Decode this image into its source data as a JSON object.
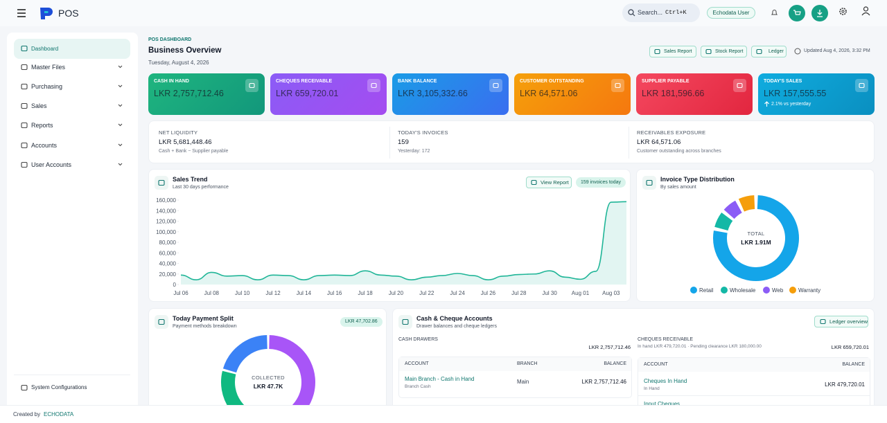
{
  "topbar": {
    "app_name": "POS",
    "search_placeholder": "Search...",
    "search_shortcut": "Ctrl+K",
    "user": "Echodata User"
  },
  "sidebar": {
    "items": [
      "Dashboard",
      "Master Files",
      "Purchasing",
      "Sales",
      "Reports",
      "Accounts",
      "User Accounts"
    ],
    "footer_item": "System Configurations"
  },
  "header": {
    "eyebrow": "POS DASHBOARD",
    "title": "Business Overview",
    "date": "Tuesday, August 4, 2026",
    "buttons": [
      "Sales Report",
      "Stock Report",
      "Ledger"
    ],
    "updated": "Updated Aug 4, 2026, 3:32 PM"
  },
  "kpis": [
    {
      "label": "CASH IN HAND",
      "value": "LKR 2,757,712.46",
      "color": [
        "#1fb57f",
        "#12977b"
      ]
    },
    {
      "label": "CHEQUES RECEIVABLE",
      "value": "LKR 659,720.01",
      "color": [
        "#8b5cf6",
        "#a44cf0"
      ]
    },
    {
      "label": "BANK BALANCE",
      "value": "LKR 3,105,332.66",
      "color": [
        "#1a9be6",
        "#3a6ef0"
      ]
    },
    {
      "label": "CUSTOMER OUTSTANDING",
      "value": "LKR 64,571.06",
      "color": [
        "#f5a00b",
        "#f5780f"
      ]
    },
    {
      "label": "SUPPLIER PAYABLE",
      "value": "LKR 181,596.66",
      "color": [
        "#f4485f",
        "#e2263f"
      ]
    },
    {
      "label": "TODAY'S SALES",
      "value": "LKR 157,555.55",
      "note": "2.1% vs yesterday",
      "color": [
        "#10acdf",
        "#0a8fc0"
      ]
    }
  ],
  "summary": [
    {
      "label": "NET LIQUIDITY",
      "value": "LKR 5,681,448.46",
      "note": "Cash + Bank − Supplier payable"
    },
    {
      "label": "TODAY'S INVOICES",
      "value": "159",
      "note": "Yesterday: 172"
    },
    {
      "label": "RECEIVABLES EXPOSURE",
      "value": "LKR 64,571.06",
      "note": "Customer outstanding across branches"
    }
  ],
  "sales_trend": {
    "title": "Sales Trend",
    "subtitle": "Last 30 days performance",
    "button": "View Report",
    "badge": "159 invoices today",
    "chart_data": {
      "type": "line",
      "color": "#1fb597",
      "categories": [
        "Jul 06",
        null,
        "Jul 08",
        null,
        "Jul 10",
        null,
        "Jul 12",
        null,
        "Jul 14",
        null,
        "Jul 16",
        null,
        "Jul 18",
        null,
        "Jul 20",
        null,
        "Jul 22",
        null,
        "Jul 24",
        null,
        "Jul 26",
        null,
        "Jul 28",
        null,
        "Jul 30",
        null,
        "Aug 01",
        null,
        "Aug 03",
        null
      ],
      "values": [
        18000,
        9000,
        23000,
        16000,
        17000,
        9000,
        18000,
        17000,
        9000,
        17000,
        18000,
        17000,
        26000,
        18000,
        16000,
        9000,
        14000,
        17000,
        21000,
        17000,
        9000,
        16000,
        19000,
        20000,
        26000,
        14000,
        10000,
        25000,
        156000,
        157000
      ],
      "ylim": [
        0,
        160000
      ],
      "yticks": [
        0,
        {
          "value": 20000,
          "label": "20,000"
        },
        {
          "value": 40000,
          "label": "40,000"
        },
        {
          "value": 60000,
          "label": "60,000"
        },
        {
          "value": 80000,
          "label": "80,000"
        },
        {
          "value": 100000,
          "label": "100,000"
        },
        {
          "value": 120000,
          "label": "120,000"
        },
        {
          "value": 140000,
          "label": "140,000"
        },
        {
          "value": 160000,
          "label": "160,000"
        }
      ],
      "grid": false
    }
  },
  "invoice_distribution": {
    "title": "Invoice Type Distribution",
    "subtitle": "By sales amount",
    "chart_data": {
      "type": "donut",
      "center_label": "TOTAL",
      "center_value": "LKR 1.91M",
      "categories": [
        "Retail",
        "Wholesale",
        "Web",
        "Warranty"
      ],
      "values": [
        1500000,
        140000,
        130000,
        140000
      ],
      "colors": [
        "#14a5e9",
        "#14b8a6",
        "#8b5cf6",
        "#f59e0b"
      ]
    }
  },
  "payment_split": {
    "title": "Today Payment Split",
    "subtitle": "Payment methods breakdown",
    "badge": "LKR 47,702.86",
    "chart_data": {
      "type": "donut",
      "center_label": "COLLECTED",
      "center_value": "LKR 47.7K",
      "values": [
        22400,
        2000,
        13400,
        9900
      ],
      "colors": [
        "#a855f7",
        "#3b82f6",
        "#10b981",
        "#3b82f6"
      ]
    }
  },
  "accounts": {
    "title": "Cash & Cheque Accounts",
    "subtitle": "Drawer balances and cheque ledgers",
    "button": "Ledger overview",
    "cash": {
      "label": "CASH DRAWERS",
      "total": "LKR 2,757,712.46",
      "columns": [
        "ACCOUNT",
        "BRANCH",
        "BALANCE"
      ],
      "rows": [
        {
          "account": "Main Branch - Cash in Hand",
          "sub": "Branch Cash",
          "branch": "Main",
          "balance": "LKR 2,757,712.46"
        }
      ]
    },
    "cheques": {
      "label": "CHEQUES RECEIVABLE",
      "note": "In hand LKR 479,720.01 · Pending clearance LKR 180,000.00",
      "total": "LKR 659,720.01",
      "columns": [
        "ACCOUNT",
        "BALANCE"
      ],
      "rows": [
        {
          "account": "Cheques In Hand",
          "sub": "In Hand",
          "balance": "LKR 479,720.01"
        },
        {
          "account": "Input Cheques"
        }
      ]
    }
  },
  "footer": {
    "prefix": "Created by",
    "brand": "ECHODATA"
  }
}
